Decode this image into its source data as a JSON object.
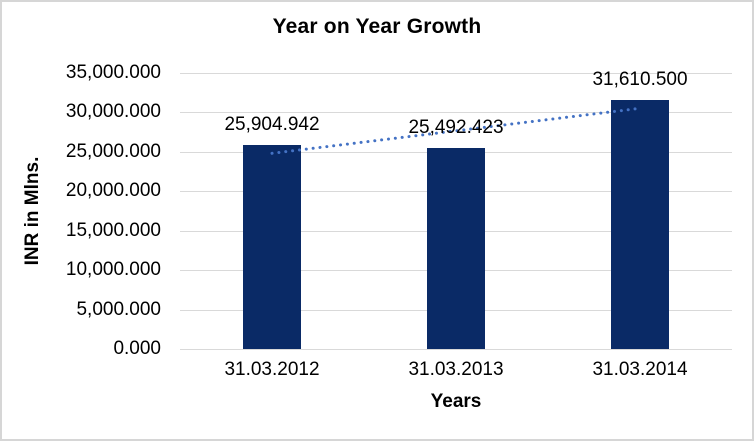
{
  "chart_data": {
    "type": "bar",
    "title": "Year on Year Growth",
    "xlabel": "Years",
    "ylabel": "INR in Mlns.",
    "categories": [
      "31.03.2012",
      "31.03.2013",
      "31.03.2014"
    ],
    "values": [
      25904.942,
      25492.423,
      31610.5
    ],
    "data_labels": [
      "25,904.942",
      "25,492.423",
      "31,610.500"
    ],
    "ylim": [
      0,
      35000
    ],
    "ytick_step": 5000,
    "ytick_labels_top_to_bottom": [
      "35,000.000",
      "30,000.000",
      "25,000.000",
      "20,000.000",
      "15,000.000",
      "10,000.000",
      "5,000.000",
      "0.000"
    ],
    "grid": true,
    "legend": "none",
    "trendline": {
      "type": "linear",
      "line_style": "dotted",
      "color": "#4472c4"
    },
    "colors": {
      "bar": "#0a2a66",
      "trendline": "#4472c4",
      "gridline": "#d9d9d9",
      "text": "#000000",
      "chart_border": "#d6d6d6",
      "background": "#ffffff"
    }
  }
}
